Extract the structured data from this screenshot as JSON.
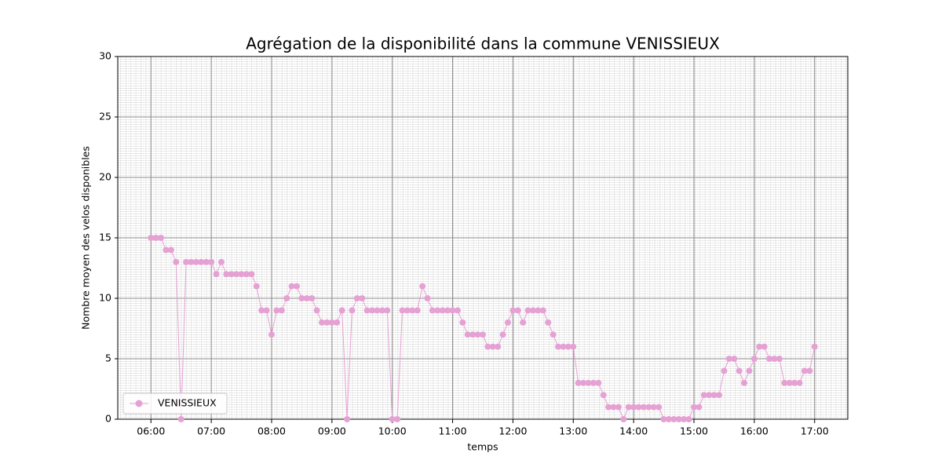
{
  "chart_data": {
    "type": "line",
    "title": "Agrégation de la disponibilité dans la commune VENISSIEUX",
    "xlabel": "temps",
    "ylabel": "Nombre moyen des velos disponibles",
    "x": [
      "06:00",
      "06:05",
      "06:10",
      "06:15",
      "06:20",
      "06:25",
      "06:30",
      "06:35",
      "06:40",
      "06:45",
      "06:50",
      "06:55",
      "07:00",
      "07:05",
      "07:10",
      "07:15",
      "07:20",
      "07:25",
      "07:30",
      "07:35",
      "07:40",
      "07:45",
      "07:50",
      "07:55",
      "08:00",
      "08:05",
      "08:10",
      "08:15",
      "08:20",
      "08:25",
      "08:30",
      "08:35",
      "08:40",
      "08:45",
      "08:50",
      "08:55",
      "09:00",
      "09:05",
      "09:10",
      "09:15",
      "09:20",
      "09:25",
      "09:30",
      "09:35",
      "09:40",
      "09:45",
      "09:50",
      "09:55",
      "10:00",
      "10:05",
      "10:10",
      "10:15",
      "10:20",
      "10:25",
      "10:30",
      "10:35",
      "10:40",
      "10:45",
      "10:50",
      "10:55",
      "11:00",
      "11:05",
      "11:10",
      "11:15",
      "11:20",
      "11:25",
      "11:30",
      "11:35",
      "11:40",
      "11:45",
      "11:50",
      "11:55",
      "12:00",
      "12:05",
      "12:10",
      "12:15",
      "12:20",
      "12:25",
      "12:30",
      "12:35",
      "12:40",
      "12:45",
      "12:50",
      "12:55",
      "13:00",
      "13:05",
      "13:10",
      "13:15",
      "13:20",
      "13:25",
      "13:30",
      "13:35",
      "13:40",
      "13:45",
      "13:50",
      "13:55",
      "14:00",
      "14:05",
      "14:10",
      "14:15",
      "14:20",
      "14:25",
      "14:30",
      "14:35",
      "14:40",
      "14:45",
      "14:50",
      "14:55",
      "15:00",
      "15:05",
      "15:10",
      "15:15",
      "15:20",
      "15:25",
      "15:30",
      "15:35",
      "15:40",
      "15:45",
      "15:50",
      "15:55",
      "16:00",
      "16:05",
      "16:10",
      "16:15",
      "16:20",
      "16:25",
      "16:30",
      "16:35",
      "16:40",
      "16:45",
      "16:50",
      "16:55",
      "17:00"
    ],
    "series": [
      {
        "name": "VENISSIEUX",
        "color": "#e6a1d4",
        "values": [
          15,
          15,
          15,
          14,
          14,
          13,
          0,
          13,
          13,
          13,
          13,
          13,
          13,
          12,
          13,
          12,
          12,
          12,
          12,
          12,
          12,
          11,
          9,
          9,
          7,
          9,
          9,
          10,
          11,
          11,
          10,
          10,
          10,
          9,
          8,
          8,
          8,
          8,
          9,
          0,
          9,
          10,
          10,
          9,
          9,
          9,
          9,
          9,
          0,
          0,
          9,
          9,
          9,
          9,
          11,
          10,
          9,
          9,
          9,
          9,
          9,
          9,
          8,
          7,
          7,
          7,
          7,
          6,
          6,
          6,
          7,
          8,
          9,
          9,
          8,
          9,
          9,
          9,
          9,
          8,
          7,
          6,
          6,
          6,
          6,
          3,
          3,
          3,
          3,
          3,
          2,
          1,
          1,
          1,
          0,
          1,
          1,
          1,
          1,
          1,
          1,
          1,
          0,
          0,
          0,
          0,
          0,
          0,
          1,
          1,
          2,
          2,
          2,
          2,
          4,
          5,
          5,
          4,
          3,
          4,
          5,
          6,
          6,
          5,
          5,
          5,
          3,
          3,
          3,
          3,
          4,
          4,
          6
        ]
      }
    ],
    "xlim": [
      "05:27",
      "17:33"
    ],
    "xticks": [
      "06:00",
      "07:00",
      "08:00",
      "09:00",
      "10:00",
      "11:00",
      "12:00",
      "13:00",
      "14:00",
      "15:00",
      "16:00",
      "17:00"
    ],
    "ylim": [
      0,
      30
    ],
    "yticks": [
      0,
      5,
      10,
      15,
      20,
      25,
      30
    ],
    "grid": true,
    "minor_grid": true,
    "legend": "lower left"
  }
}
